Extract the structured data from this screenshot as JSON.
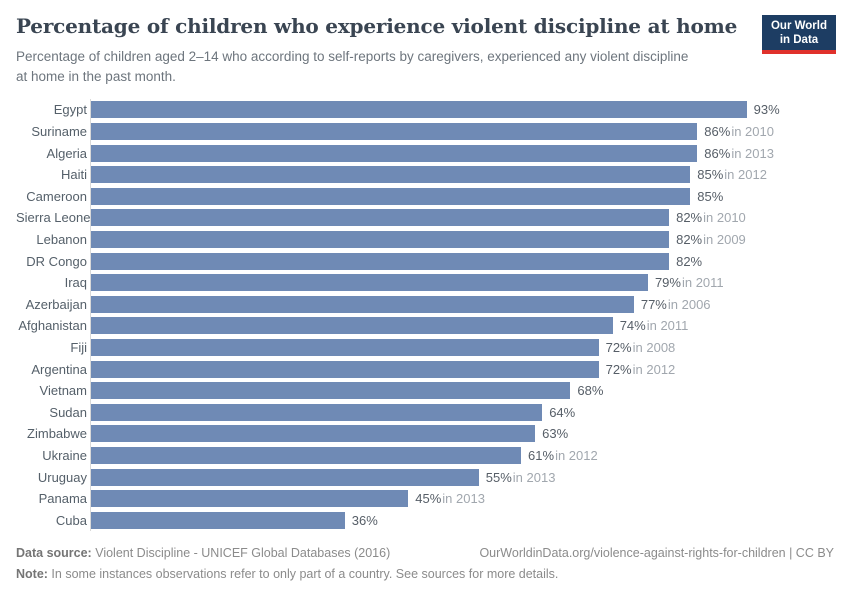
{
  "header": {
    "title": "Percentage of children who experience violent discipline at home",
    "subtitle": "Percentage of children aged 2–14 who according to self-reports by caregivers, experienced any violent discipline at home in the past month.",
    "logo": {
      "line1": "Our World",
      "line2": "in Data"
    }
  },
  "chart_data": {
    "type": "bar",
    "orientation": "horizontal",
    "title": "Percentage of children who experience violent discipline at home",
    "xlabel": "",
    "ylabel": "",
    "xlim": [
      0,
      100
    ],
    "grid": false,
    "legend": "none",
    "bar_color": "#6f8ab5",
    "categories": [
      "Egypt",
      "Suriname",
      "Algeria",
      "Haiti",
      "Cameroon",
      "Sierra Leone",
      "Lebanon",
      "DR Congo",
      "Iraq",
      "Azerbaijan",
      "Afghanistan",
      "Fiji",
      "Argentina",
      "Vietnam",
      "Sudan",
      "Zimbabwe",
      "Ukraine",
      "Uruguay",
      "Panama",
      "Cuba"
    ],
    "values": [
      93,
      86,
      86,
      85,
      85,
      82,
      82,
      82,
      79,
      77,
      74,
      72,
      72,
      68,
      64,
      63,
      61,
      55,
      45,
      36
    ],
    "rows": [
      {
        "country": "Egypt",
        "value": 93,
        "value_label": "93%",
        "year_label": ""
      },
      {
        "country": "Suriname",
        "value": 86,
        "value_label": "86%",
        "year_label": "in 2010"
      },
      {
        "country": "Algeria",
        "value": 86,
        "value_label": "86%",
        "year_label": "in 2013"
      },
      {
        "country": "Haiti",
        "value": 85,
        "value_label": "85%",
        "year_label": "in 2012"
      },
      {
        "country": "Cameroon",
        "value": 85,
        "value_label": "85%",
        "year_label": ""
      },
      {
        "country": "Sierra Leone",
        "value": 82,
        "value_label": "82%",
        "year_label": "in 2010"
      },
      {
        "country": "Lebanon",
        "value": 82,
        "value_label": "82%",
        "year_label": "in 2009"
      },
      {
        "country": "DR Congo",
        "value": 82,
        "value_label": "82%",
        "year_label": ""
      },
      {
        "country": "Iraq",
        "value": 79,
        "value_label": "79%",
        "year_label": "in 2011"
      },
      {
        "country": "Azerbaijan",
        "value": 77,
        "value_label": "77%",
        "year_label": "in 2006"
      },
      {
        "country": "Afghanistan",
        "value": 74,
        "value_label": "74%",
        "year_label": "in 2011"
      },
      {
        "country": "Fiji",
        "value": 72,
        "value_label": "72%",
        "year_label": "in 2008"
      },
      {
        "country": "Argentina",
        "value": 72,
        "value_label": "72%",
        "year_label": "in 2012"
      },
      {
        "country": "Vietnam",
        "value": 68,
        "value_label": "68%",
        "year_label": ""
      },
      {
        "country": "Sudan",
        "value": 64,
        "value_label": "64%",
        "year_label": ""
      },
      {
        "country": "Zimbabwe",
        "value": 63,
        "value_label": "63%",
        "year_label": ""
      },
      {
        "country": "Ukraine",
        "value": 61,
        "value_label": "61%",
        "year_label": "in 2012"
      },
      {
        "country": "Uruguay",
        "value": 55,
        "value_label": "55%",
        "year_label": "in 2013"
      },
      {
        "country": "Panama",
        "value": 45,
        "value_label": "45%",
        "year_label": "in 2013"
      },
      {
        "country": "Cuba",
        "value": 36,
        "value_label": "36%",
        "year_label": ""
      }
    ]
  },
  "footer": {
    "datasource_label": "Data source:",
    "datasource_text": " Violent Discipline - UNICEF Global Databases (2016)",
    "url_text": "OurWorldinData.org/violence-against-rights-for-children | CC BY",
    "note_label": "Note:",
    "note_text": " In some instances observations refer to only part of a country. See sources for more details."
  },
  "colors": {
    "bar": "#6f8ab5",
    "title": "#3a4552",
    "subtitle": "#6d757d",
    "country_label": "#55606a",
    "value_label": "#565e67",
    "year_label": "#a1a7ae",
    "axis_line": "#d9d9d9",
    "logo_bg": "#1d3d63",
    "logo_stripe": "#e0312b",
    "footer_text": "#8b8b8b"
  }
}
